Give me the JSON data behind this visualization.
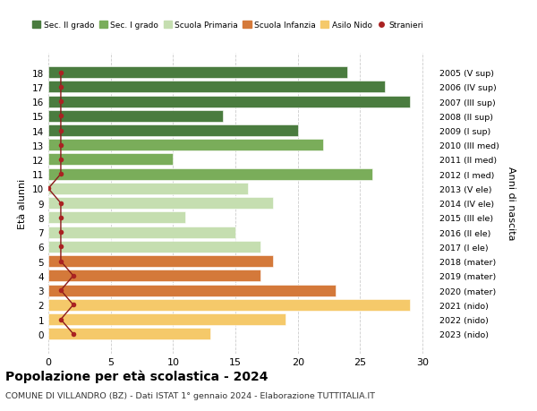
{
  "ages": [
    18,
    17,
    16,
    15,
    14,
    13,
    12,
    11,
    10,
    9,
    8,
    7,
    6,
    5,
    4,
    3,
    2,
    1,
    0
  ],
  "years": [
    "2005 (V sup)",
    "2006 (IV sup)",
    "2007 (III sup)",
    "2008 (II sup)",
    "2009 (I sup)",
    "2010 (III med)",
    "2011 (II med)",
    "2012 (I med)",
    "2013 (V ele)",
    "2014 (IV ele)",
    "2015 (III ele)",
    "2016 (II ele)",
    "2017 (I ele)",
    "2018 (mater)",
    "2019 (mater)",
    "2020 (mater)",
    "2021 (nido)",
    "2022 (nido)",
    "2023 (nido)"
  ],
  "values": [
    24,
    27,
    29,
    14,
    20,
    22,
    10,
    26,
    16,
    18,
    11,
    15,
    17,
    18,
    17,
    23,
    29,
    19,
    13
  ],
  "stranieri_values": [
    1,
    1,
    1,
    1,
    1,
    1,
    1,
    1,
    0,
    1,
    1,
    1,
    1,
    1,
    2,
    1,
    2,
    1,
    2
  ],
  "colors": {
    "sec2": "#4a7c3f",
    "sec1": "#7aad5a",
    "primaria": "#c5deb0",
    "infanzia": "#d4793a",
    "nido": "#f5c96a",
    "stranieri_line": "#8b1a1a",
    "stranieri_dot": "#aa2222"
  },
  "bar_colors": [
    "#4a7c3f",
    "#4a7c3f",
    "#4a7c3f",
    "#4a7c3f",
    "#4a7c3f",
    "#7aad5a",
    "#7aad5a",
    "#7aad5a",
    "#c5deb0",
    "#c5deb0",
    "#c5deb0",
    "#c5deb0",
    "#c5deb0",
    "#d4793a",
    "#d4793a",
    "#d4793a",
    "#f5c96a",
    "#f5c96a",
    "#f5c96a"
  ],
  "title": "Popolazione per età scolastica - 2024",
  "subtitle": "COMUNE DI VILLANDRO (BZ) - Dati ISTAT 1° gennaio 2024 - Elaborazione TUTTITALIA.IT",
  "ylabel_left": "Età alunni",
  "ylabel_right": "Anni di nascita",
  "xlim": [
    0,
    31
  ],
  "legend_labels": [
    "Sec. II grado",
    "Sec. I grado",
    "Scuola Primaria",
    "Scuola Infanzia",
    "Asilo Nido",
    "Stranieri"
  ],
  "legend_colors": [
    "#4a7c3f",
    "#7aad5a",
    "#c5deb0",
    "#d4793a",
    "#f5c96a",
    "#aa2222"
  ]
}
